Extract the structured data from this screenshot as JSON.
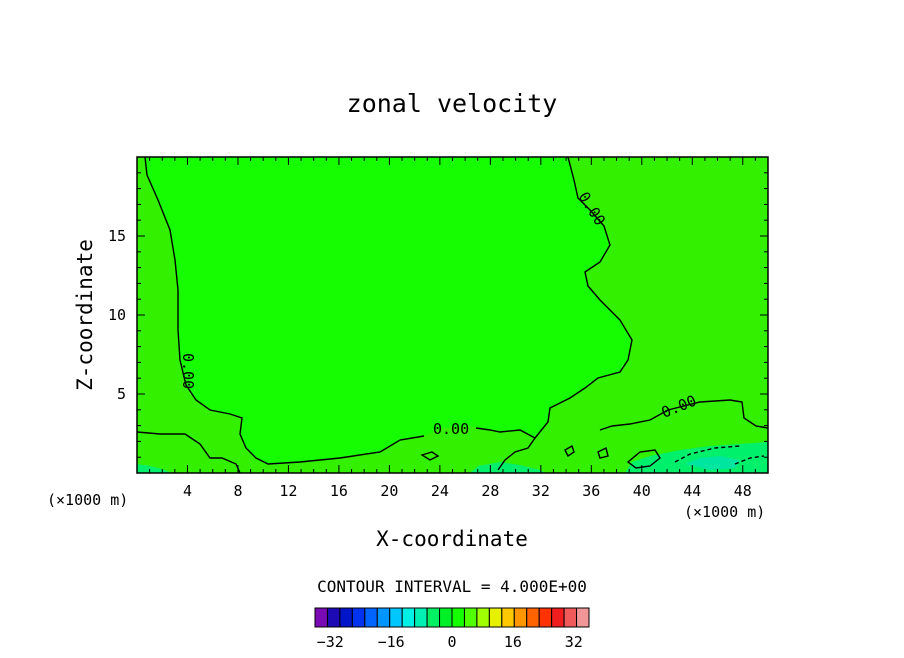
{
  "chart_data": {
    "type": "contour",
    "title": "zonal velocity",
    "xlabel": "X-coordinate",
    "ylabel": "Z-coordinate",
    "xunit": "(×1000 m)",
    "zunit": "(×1000 m)",
    "xlim": [
      0,
      50
    ],
    "ylim": [
      0,
      20
    ],
    "xticks": [
      4,
      8,
      12,
      16,
      20,
      24,
      28,
      32,
      36,
      40,
      44,
      48
    ],
    "yticks": [
      5,
      10,
      15
    ],
    "contour_interval_text": "CONTOUR INTERVAL = 4.000E+00",
    "contour_label": "0.00",
    "fill_colors": {
      "interior_0_to_4": "#16fc00",
      "left_and_right_region": "#32f000",
      "bottom_weak_negative": "#00f06c",
      "bottom_strong_negative": "#00e6a0"
    },
    "colorbar": {
      "tick_labels": [
        "-32",
        "-16",
        "0",
        "16",
        "32"
      ],
      "tick_values": [
        -32,
        -16,
        0,
        16,
        32
      ],
      "range": [
        -36,
        36
      ],
      "colors": [
        "#7a0ab4",
        "#1e0ab4",
        "#0014c8",
        "#0032f0",
        "#0064ff",
        "#0096ff",
        "#00c8ff",
        "#00f0e6",
        "#00f0b4",
        "#00f064",
        "#00f028",
        "#14ff00",
        "#50ff00",
        "#a0ff00",
        "#e6f000",
        "#ffc800",
        "#ff9600",
        "#ff6400",
        "#ff3200",
        "#f01e1e",
        "#f05a5a",
        "#f09696"
      ]
    }
  }
}
